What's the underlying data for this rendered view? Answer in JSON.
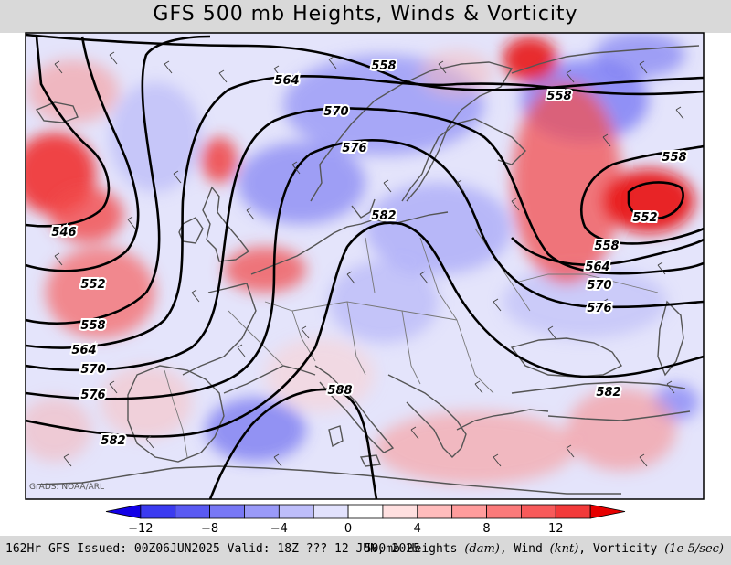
{
  "title": "GFS 500 mb Heights, Winds & Vorticity",
  "credit": "GrADS: NOAA/ARL",
  "footer": {
    "issue_info": "162Hr GFS Issued: 00Z06JUN2025 Valid: 18Z ??? 12 JUN, 2025",
    "field_prefix": "500mb Heights ",
    "height_units": "(dam)",
    "wind_label": ", Wind ",
    "wind_units": "(knt)",
    "vort_label": ", Vorticity ",
    "vort_units": "(1e-5/sec)"
  },
  "colorbar": {
    "colors": [
      "#1200e6",
      "#3b3bf0",
      "#5a5af2",
      "#7878f5",
      "#9a9af8",
      "#bebefa",
      "#e2e2fd",
      "#ffffff",
      "#ffe0e0",
      "#ffbcbc",
      "#ff9c9c",
      "#fb7a7a",
      "#f75a5a",
      "#f23a3a",
      "#e60000"
    ],
    "tick_labels": [
      "−12",
      "−8",
      "−4",
      "0",
      "4",
      "8",
      "12"
    ]
  },
  "contour_labels": [
    "564",
    "558",
    "558",
    "570",
    "576",
    "546",
    "552",
    "558",
    "564",
    "570",
    "576",
    "582",
    "588",
    "582",
    "558",
    "552",
    "558",
    "564",
    "570",
    "576",
    "582"
  ],
  "colors": {
    "negative_vorticity": "#4a4af0",
    "positive_vorticity": "#f03030",
    "height_contour": "#000000",
    "coastline": "#555555"
  }
}
